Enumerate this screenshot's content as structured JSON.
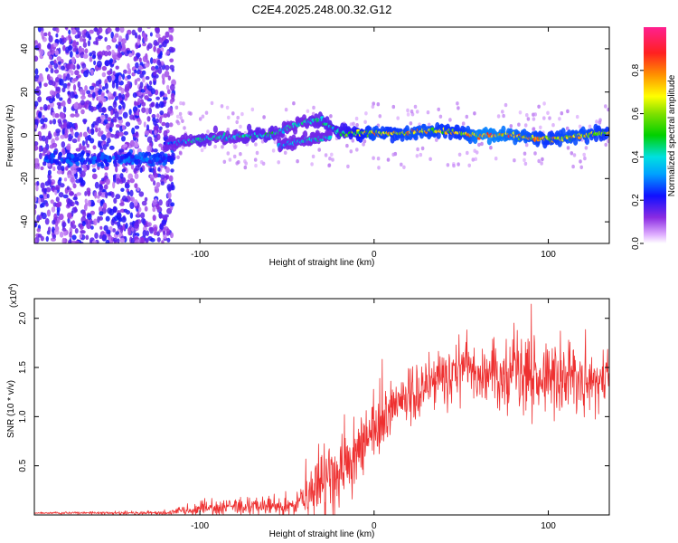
{
  "title": "C2E4.2025.248.00.32.G12",
  "chart_data": [
    {
      "type": "heatmap",
      "title": "C2E4.2025.248.00.32.G12",
      "xlabel": "Height of straight line (km)",
      "ylabel": "Frequency (Hz)",
      "xlim": [
        -195,
        135
      ],
      "ylim": [
        -50,
        50
      ],
      "xticks": [
        -100,
        0,
        100
      ],
      "xtick_labels": [
        "-100",
        "0",
        "100"
      ],
      "yticks": [
        -40,
        -20,
        0,
        20,
        40
      ],
      "ytick_labels": [
        "-40",
        "-20",
        "0",
        "20",
        "40"
      ],
      "colorbar": {
        "label": "Normalized spectral amplitude",
        "range": [
          0,
          1
        ],
        "ticks": [
          0.0,
          0.2,
          0.4,
          0.6,
          0.8
        ],
        "tick_labels": [
          "0.0",
          "0.2",
          "0.4",
          "0.6",
          "0.8"
        ]
      },
      "noise_region": {
        "x_range": [
          -195,
          -115
        ],
        "freq_range": [
          -50,
          50
        ],
        "amplitude": 0.15
      },
      "ridge": [
        {
          "x": -120,
          "freq": -4,
          "amp": 0.25
        },
        {
          "x": -110,
          "freq": -3,
          "amp": 0.35
        },
        {
          "x": -100,
          "freq": -2,
          "amp": 0.45
        },
        {
          "x": -90,
          "freq": -1,
          "amp": 0.4
        },
        {
          "x": -80,
          "freq": -1,
          "amp": 0.4
        },
        {
          "x": -70,
          "freq": 0,
          "amp": 0.45
        },
        {
          "x": -60,
          "freq": 0,
          "amp": 0.45
        },
        {
          "x": -50,
          "freq": 3,
          "amp": 0.4
        },
        {
          "x": -40,
          "freq": 6,
          "amp": 0.4
        },
        {
          "x": -30,
          "freq": 7,
          "amp": 0.45
        },
        {
          "x": -20,
          "freq": 1,
          "amp": 0.5
        },
        {
          "x": -10,
          "freq": 1,
          "amp": 0.6
        },
        {
          "x": 0,
          "freq": 1,
          "amp": 0.75
        },
        {
          "x": 10,
          "freq": 1,
          "amp": 0.7
        },
        {
          "x": 20,
          "freq": 1,
          "amp": 0.75
        },
        {
          "x": 30,
          "freq": 2,
          "amp": 0.75
        },
        {
          "x": 40,
          "freq": 2,
          "amp": 0.7
        },
        {
          "x": 50,
          "freq": 1,
          "amp": 0.7
        },
        {
          "x": 60,
          "freq": 0,
          "amp": 0.85
        },
        {
          "x": 70,
          "freq": 0,
          "amp": 0.85
        },
        {
          "x": 80,
          "freq": 0,
          "amp": 0.8
        },
        {
          "x": 90,
          "freq": -1,
          "amp": 0.75
        },
        {
          "x": 100,
          "freq": -2,
          "amp": 0.7
        },
        {
          "x": 110,
          "freq": -1,
          "amp": 0.75
        },
        {
          "x": 120,
          "freq": 0,
          "amp": 0.75
        },
        {
          "x": 130,
          "freq": 1,
          "amp": 0.7
        }
      ],
      "secondary_ridge": [
        {
          "x": -55,
          "freq": -5,
          "amp": 0.35
        },
        {
          "x": -45,
          "freq": -3,
          "amp": 0.4
        },
        {
          "x": -35,
          "freq": -2,
          "amp": 0.4
        },
        {
          "x": -25,
          "freq": -1,
          "amp": 0.4
        }
      ]
    },
    {
      "type": "line",
      "xlabel": "Height of straight line (km)",
      "ylabel": "SNR (10 * v/v)",
      "y_multiplier_label": "(x10",
      "y_multiplier_exp": "4",
      "y_multiplier_close": ")",
      "xlim": [
        -195,
        135
      ],
      "ylim": [
        0,
        2.2
      ],
      "xticks": [
        -100,
        0,
        100
      ],
      "xtick_labels": [
        "-100",
        "0",
        "100"
      ],
      "yticks": [
        0.5,
        1.0,
        1.5,
        2.0
      ],
      "ytick_labels": [
        "0.5",
        "1.0",
        "1.5",
        "2.0"
      ],
      "color": "#ee3030",
      "envelope": [
        {
          "x": -195,
          "base": 0.02,
          "noise": 0.01
        },
        {
          "x": -120,
          "base": 0.02,
          "noise": 0.02
        },
        {
          "x": -110,
          "base": 0.04,
          "noise": 0.05
        },
        {
          "x": -100,
          "base": 0.06,
          "noise": 0.08
        },
        {
          "x": -80,
          "base": 0.08,
          "noise": 0.1
        },
        {
          "x": -60,
          "base": 0.09,
          "noise": 0.1
        },
        {
          "x": -50,
          "base": 0.1,
          "noise": 0.12
        },
        {
          "x": -40,
          "base": 0.15,
          "noise": 0.25
        },
        {
          "x": -30,
          "base": 0.3,
          "noise": 0.45
        },
        {
          "x": -20,
          "base": 0.45,
          "noise": 0.5
        },
        {
          "x": -10,
          "base": 0.6,
          "noise": 0.4
        },
        {
          "x": 0,
          "base": 0.85,
          "noise": 0.35
        },
        {
          "x": 10,
          "base": 1.05,
          "noise": 0.3
        },
        {
          "x": 20,
          "base": 1.2,
          "noise": 0.3
        },
        {
          "x": 30,
          "base": 1.3,
          "noise": 0.3
        },
        {
          "x": 40,
          "base": 1.4,
          "noise": 0.3
        },
        {
          "x": 50,
          "base": 1.45,
          "noise": 0.35
        },
        {
          "x": 60,
          "base": 1.45,
          "noise": 0.4
        },
        {
          "x": 80,
          "base": 1.42,
          "noise": 0.4
        },
        {
          "x": 100,
          "base": 1.4,
          "noise": 0.4
        },
        {
          "x": 120,
          "base": 1.35,
          "noise": 0.4
        },
        {
          "x": 135,
          "base": 1.35,
          "noise": 0.35
        }
      ]
    }
  ]
}
